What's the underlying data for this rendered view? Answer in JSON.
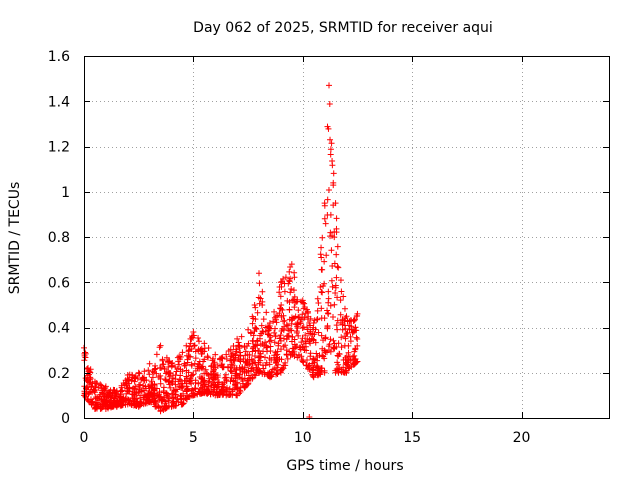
{
  "chart_data": {
    "type": "scatter",
    "title": "Day 062 of 2025, SRMTID for receiver aqui",
    "xlabel": "GPS time / hours",
    "ylabel": "SRMTID / TECUs",
    "xlim": [
      0,
      24
    ],
    "ylim": [
      0,
      1.6
    ],
    "grid": true,
    "marker": "plus",
    "color": "#ff0000",
    "xticks": [
      0,
      5,
      10,
      15,
      20
    ],
    "xtick_labels": [
      "0",
      "5",
      "10",
      "15",
      "20"
    ],
    "yticks": [
      0,
      0.2,
      0.4,
      0.6,
      0.8,
      1.0,
      1.2,
      1.4,
      1.6
    ],
    "ytick_labels": [
      "0",
      "0.2",
      "0.4",
      "0.6",
      "0.8",
      "1",
      "1.2",
      "1.4",
      "1.6"
    ],
    "series": [
      {
        "name": "SRMTID",
        "envelope": [
          {
            "x": 0.0,
            "low": 0.1,
            "high": 0.31
          },
          {
            "x": 0.5,
            "low": 0.04,
            "high": 0.16
          },
          {
            "x": 1.0,
            "low": 0.04,
            "high": 0.14
          },
          {
            "x": 1.5,
            "low": 0.05,
            "high": 0.12
          },
          {
            "x": 2.0,
            "low": 0.06,
            "high": 0.19
          },
          {
            "x": 2.5,
            "low": 0.05,
            "high": 0.2
          },
          {
            "x": 3.0,
            "low": 0.07,
            "high": 0.24
          },
          {
            "x": 3.5,
            "low": 0.03,
            "high": 0.32
          },
          {
            "x": 4.0,
            "low": 0.05,
            "high": 0.24
          },
          {
            "x": 4.5,
            "low": 0.06,
            "high": 0.29
          },
          {
            "x": 5.0,
            "low": 0.1,
            "high": 0.38
          },
          {
            "x": 5.5,
            "low": 0.11,
            "high": 0.33
          },
          {
            "x": 6.0,
            "low": 0.1,
            "high": 0.28
          },
          {
            "x": 6.5,
            "low": 0.1,
            "high": 0.28
          },
          {
            "x": 7.0,
            "low": 0.1,
            "high": 0.35
          },
          {
            "x": 7.5,
            "low": 0.15,
            "high": 0.39
          },
          {
            "x": 8.0,
            "low": 0.2,
            "high": 0.64
          },
          {
            "x": 8.5,
            "low": 0.18,
            "high": 0.42
          },
          {
            "x": 9.0,
            "low": 0.2,
            "high": 0.6
          },
          {
            "x": 9.5,
            "low": 0.28,
            "high": 0.68
          },
          {
            "x": 10.0,
            "low": 0.25,
            "high": 0.52
          },
          {
            "x": 10.5,
            "low": 0.18,
            "high": 0.42
          },
          {
            "x": 11.0,
            "low": 0.2,
            "high": 0.95
          },
          {
            "x": 11.2,
            "low": 0.3,
            "high": 1.47
          },
          {
            "x": 11.5,
            "low": 0.2,
            "high": 0.95
          },
          {
            "x": 12.0,
            "low": 0.2,
            "high": 0.45
          },
          {
            "x": 12.5,
            "low": 0.25,
            "high": 0.46
          }
        ],
        "isolated_points": [
          {
            "x": 10.3,
            "y": 0.0
          }
        ]
      }
    ]
  }
}
